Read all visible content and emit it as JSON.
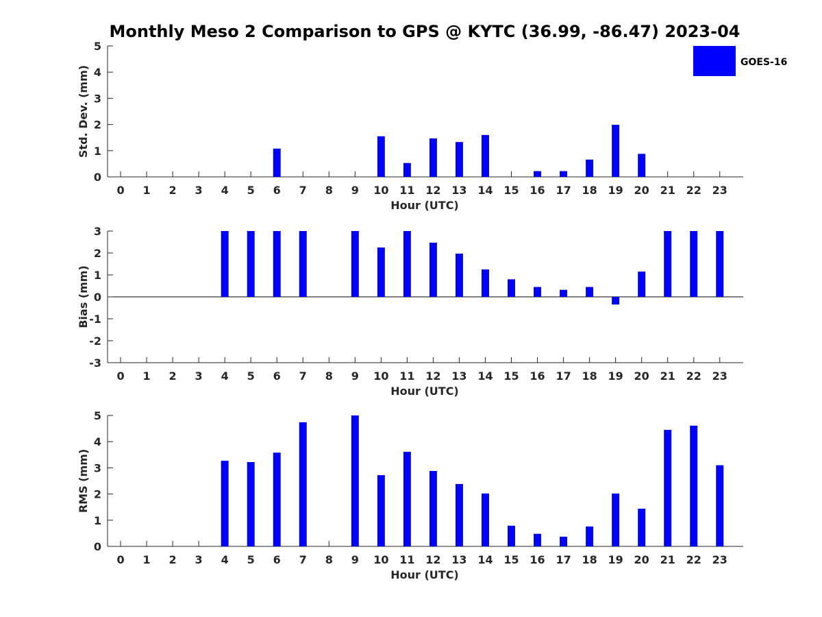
{
  "colors": {
    "bar": "#0000FF",
    "axis": "#262626",
    "background": "#ffffff"
  },
  "figure": {
    "title": "Monthly Meso 2 Comparison to GPS @ KYTC (36.99, -86.47) 2023-04",
    "legend": {
      "label": "GOES-16",
      "placement": "top-right"
    }
  },
  "chart_data": [
    {
      "type": "bar",
      "series": [
        {
          "name": "GOES-16",
          "values": [
            null,
            null,
            null,
            null,
            null,
            null,
            1.08,
            null,
            null,
            null,
            1.55,
            0.53,
            1.47,
            1.33,
            1.6,
            null,
            0.22,
            0.22,
            0.66,
            1.99,
            0.88,
            null,
            null,
            null
          ]
        }
      ],
      "categories": [
        "0",
        "1",
        "2",
        "3",
        "4",
        "5",
        "6",
        "7",
        "8",
        "9",
        "10",
        "11",
        "12",
        "13",
        "14",
        "15",
        "16",
        "17",
        "18",
        "19",
        "20",
        "21",
        "22",
        "23"
      ],
      "xlabel": "Hour (UTC)",
      "ylabel": "Std. Dev. (mm)",
      "ylim": [
        0,
        5
      ],
      "yticks": [
        "0",
        "1",
        "2",
        "3",
        "4",
        "5"
      ]
    },
    {
      "type": "bar",
      "series": [
        {
          "name": "GOES-16",
          "values": [
            null,
            null,
            null,
            null,
            3,
            3,
            3,
            3,
            null,
            3,
            2.25,
            3,
            2.47,
            1.97,
            1.25,
            0.8,
            0.45,
            0.32,
            0.45,
            -0.35,
            1.15,
            3,
            3,
            3
          ]
        }
      ],
      "categories": [
        "0",
        "1",
        "2",
        "3",
        "4",
        "5",
        "6",
        "7",
        "8",
        "9",
        "10",
        "11",
        "12",
        "13",
        "14",
        "15",
        "16",
        "17",
        "18",
        "19",
        "20",
        "21",
        "22",
        "23"
      ],
      "xlabel": "Hour (UTC)",
      "ylabel": "Bias (mm)",
      "ylim": [
        -3,
        3
      ],
      "yticks": [
        "-3",
        "-2",
        "-1",
        "0",
        "1",
        "2",
        "3"
      ],
      "zero_line": true
    },
    {
      "type": "bar",
      "series": [
        {
          "name": "GOES-16",
          "values": [
            null,
            null,
            null,
            null,
            3.27,
            3.22,
            3.58,
            4.74,
            null,
            5.0,
            2.72,
            3.61,
            2.88,
            2.38,
            2.02,
            0.79,
            0.48,
            0.37,
            0.76,
            2.02,
            1.44,
            4.45,
            4.61,
            3.1
          ]
        }
      ],
      "categories": [
        "0",
        "1",
        "2",
        "3",
        "4",
        "5",
        "6",
        "7",
        "8",
        "9",
        "10",
        "11",
        "12",
        "13",
        "14",
        "15",
        "16",
        "17",
        "18",
        "19",
        "20",
        "21",
        "22",
        "23"
      ],
      "xlabel": "Hour (UTC)",
      "ylabel": "RMS (mm)",
      "ylim": [
        0,
        5
      ],
      "yticks": [
        "0",
        "1",
        "2",
        "3",
        "4",
        "5"
      ]
    }
  ]
}
